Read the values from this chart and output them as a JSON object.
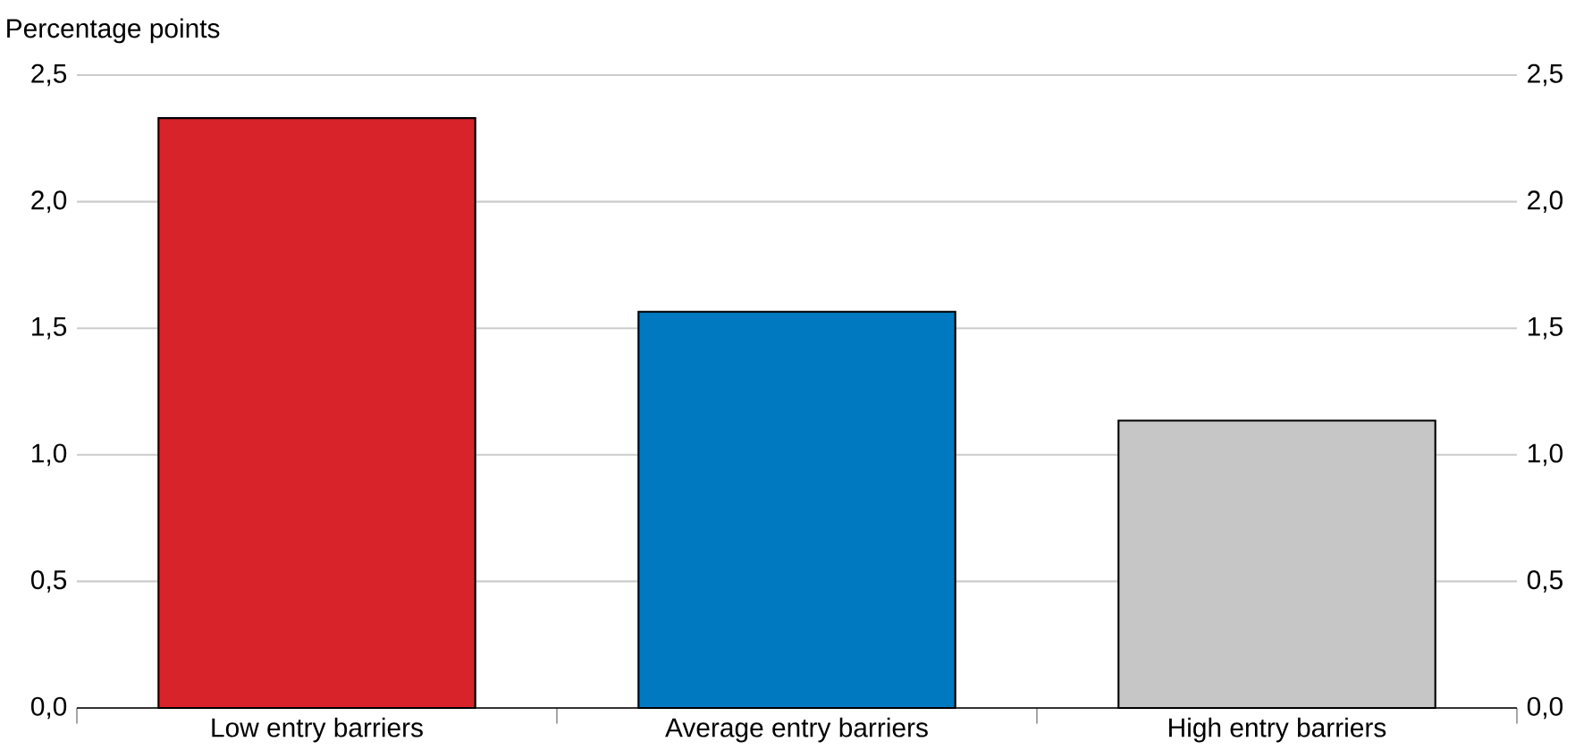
{
  "chart_data": {
    "type": "bar",
    "ylabel": "Percentage points",
    "categories": [
      "Low entry barriers",
      "Average entry barriers",
      "High entry barriers"
    ],
    "values": [
      2.33,
      1.565,
      1.135
    ],
    "colors": [
      "#d9232a",
      "#0079c1",
      "#c6c6c6"
    ],
    "ylim": [
      0,
      2.5
    ],
    "yticks": [
      {
        "value": 0,
        "label": "0,0"
      },
      {
        "value": 0.5,
        "label": "0,5"
      },
      {
        "value": 1,
        "label": "1,0"
      },
      {
        "value": 1.5,
        "label": "1,5"
      },
      {
        "value": 2,
        "label": "2,0"
      },
      {
        "value": 2.5,
        "label": "2,5"
      }
    ],
    "y2lim": [
      0,
      2.5
    ],
    "y2ticks": [
      {
        "value": 0,
        "label": "0,0"
      },
      {
        "value": 0.5,
        "label": "0,5"
      },
      {
        "value": 1,
        "label": "1,0"
      },
      {
        "value": 1.5,
        "label": "1,5"
      },
      {
        "value": 2,
        "label": "2,0"
      },
      {
        "value": 2.5,
        "label": "2,5"
      }
    ],
    "grid": "y"
  }
}
